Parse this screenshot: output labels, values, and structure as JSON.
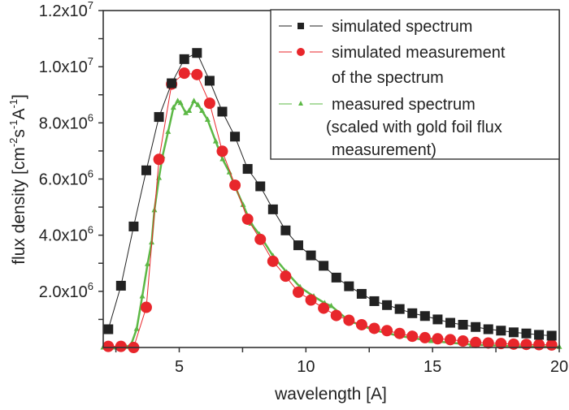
{
  "chart_data": {
    "type": "line",
    "title": "",
    "xlabel": "wavelength [A]",
    "ylabel": {
      "base": "flux density [cm",
      "e1": "-2",
      "mid": "s",
      "e2": "-1",
      "mid2": "A",
      "e3": "-1",
      "end": "]"
    },
    "xlim": [
      2,
      20
    ],
    "ylim": [
      0,
      12000000
    ],
    "x_ticks": [
      {
        "value": 5,
        "label": "5"
      },
      {
        "value": 10,
        "label": "10"
      },
      {
        "value": 15,
        "label": "15"
      },
      {
        "value": 20,
        "label": "20"
      }
    ],
    "y_ticks": [
      {
        "value": 2000000,
        "mant": "2.0x10",
        "exp": "6"
      },
      {
        "value": 4000000,
        "mant": "4.0x10",
        "exp": "6"
      },
      {
        "value": 6000000,
        "mant": "6.0x10",
        "exp": "6"
      },
      {
        "value": 8000000,
        "mant": "8.0x10",
        "exp": "6"
      },
      {
        "value": 10000000,
        "mant": "1.0x10",
        "exp": "7"
      },
      {
        "value": 12000000,
        "mant": "1.2x10",
        "exp": "7"
      }
    ],
    "grid": false,
    "legend_placement": "top-right",
    "series": [
      {
        "name": "simulated spectrum",
        "color": "#222222",
        "marker": "square",
        "x_start": 2.2,
        "x_step": 0.5,
        "y_1e6": [
          0.65,
          2.2,
          4.31,
          6.31,
          8.21,
          9.41,
          10.27,
          10.49,
          9.5,
          8.4,
          7.51,
          6.36,
          5.74,
          4.92,
          4.17,
          3.64,
          3.28,
          2.91,
          2.49,
          2.18,
          1.91,
          1.65,
          1.51,
          1.37,
          1.22,
          1.12,
          1.0,
          0.88,
          0.81,
          0.73,
          0.65,
          0.6,
          0.54,
          0.5,
          0.45,
          0.42
        ]
      },
      {
        "name": "simulated measurement of the spectrum",
        "legend_lines": [
          "simulated measurement",
          "of the spectrum"
        ],
        "color": "#e8262b",
        "marker": "circle",
        "x_start": 2.2,
        "x_step": 0.5,
        "y_1e6": [
          0.04,
          0.04,
          0.0,
          1.43,
          6.7,
          9.38,
          9.77,
          9.72,
          8.7,
          6.99,
          5.78,
          4.57,
          3.85,
          3.07,
          2.54,
          1.97,
          1.69,
          1.4,
          1.14,
          0.97,
          0.81,
          0.68,
          0.6,
          0.5,
          0.4,
          0.35,
          0.31,
          0.28,
          0.23,
          0.18,
          0.16,
          0.14,
          0.12,
          0.11,
          0.1,
          0.09
        ]
      },
      {
        "name": "measured spectrum (scaled with gold foil flux measurement)",
        "legend_lines": [
          "measured spectrum",
          "(scaled with gold foil flux",
          "measurement)"
        ],
        "color": "#5cb845",
        "marker": "triangle",
        "points_1e6": [
          [
            2.0,
            0.0
          ],
          [
            2.5,
            0.0
          ],
          [
            2.9,
            0.02
          ],
          [
            3.1,
            0.1
          ],
          [
            3.32,
            0.66
          ],
          [
            3.54,
            1.82
          ],
          [
            3.75,
            2.97
          ],
          [
            3.91,
            3.74
          ],
          [
            4.02,
            4.89
          ],
          [
            4.2,
            6.04
          ],
          [
            4.34,
            6.81
          ],
          [
            4.56,
            7.68
          ],
          [
            4.77,
            8.54
          ],
          [
            4.94,
            8.78
          ],
          [
            5.05,
            8.71
          ],
          [
            5.26,
            8.35
          ],
          [
            5.39,
            8.43
          ],
          [
            5.58,
            8.78
          ],
          [
            5.74,
            8.64
          ],
          [
            5.9,
            8.43
          ],
          [
            6.12,
            8.11
          ],
          [
            6.44,
            7.34
          ],
          [
            6.71,
            6.71
          ],
          [
            6.98,
            6.24
          ],
          [
            7.19,
            5.76
          ],
          [
            7.52,
            5.08
          ],
          [
            7.84,
            4.41
          ],
          [
            8.16,
            4.03
          ],
          [
            8.7,
            3.26
          ],
          [
            9.24,
            2.68
          ],
          [
            9.77,
            2.15
          ],
          [
            10.31,
            1.82
          ],
          [
            10.74,
            1.58
          ],
          [
            11.0,
            1.48
          ],
          [
            11.7,
            0.95
          ],
          [
            12.68,
            0.62
          ],
          [
            13.65,
            0.42
          ],
          [
            14.94,
            0.23
          ],
          [
            16.55,
            0.1
          ],
          [
            18.16,
            0.05
          ],
          [
            20.0,
            0.02
          ]
        ]
      }
    ]
  }
}
